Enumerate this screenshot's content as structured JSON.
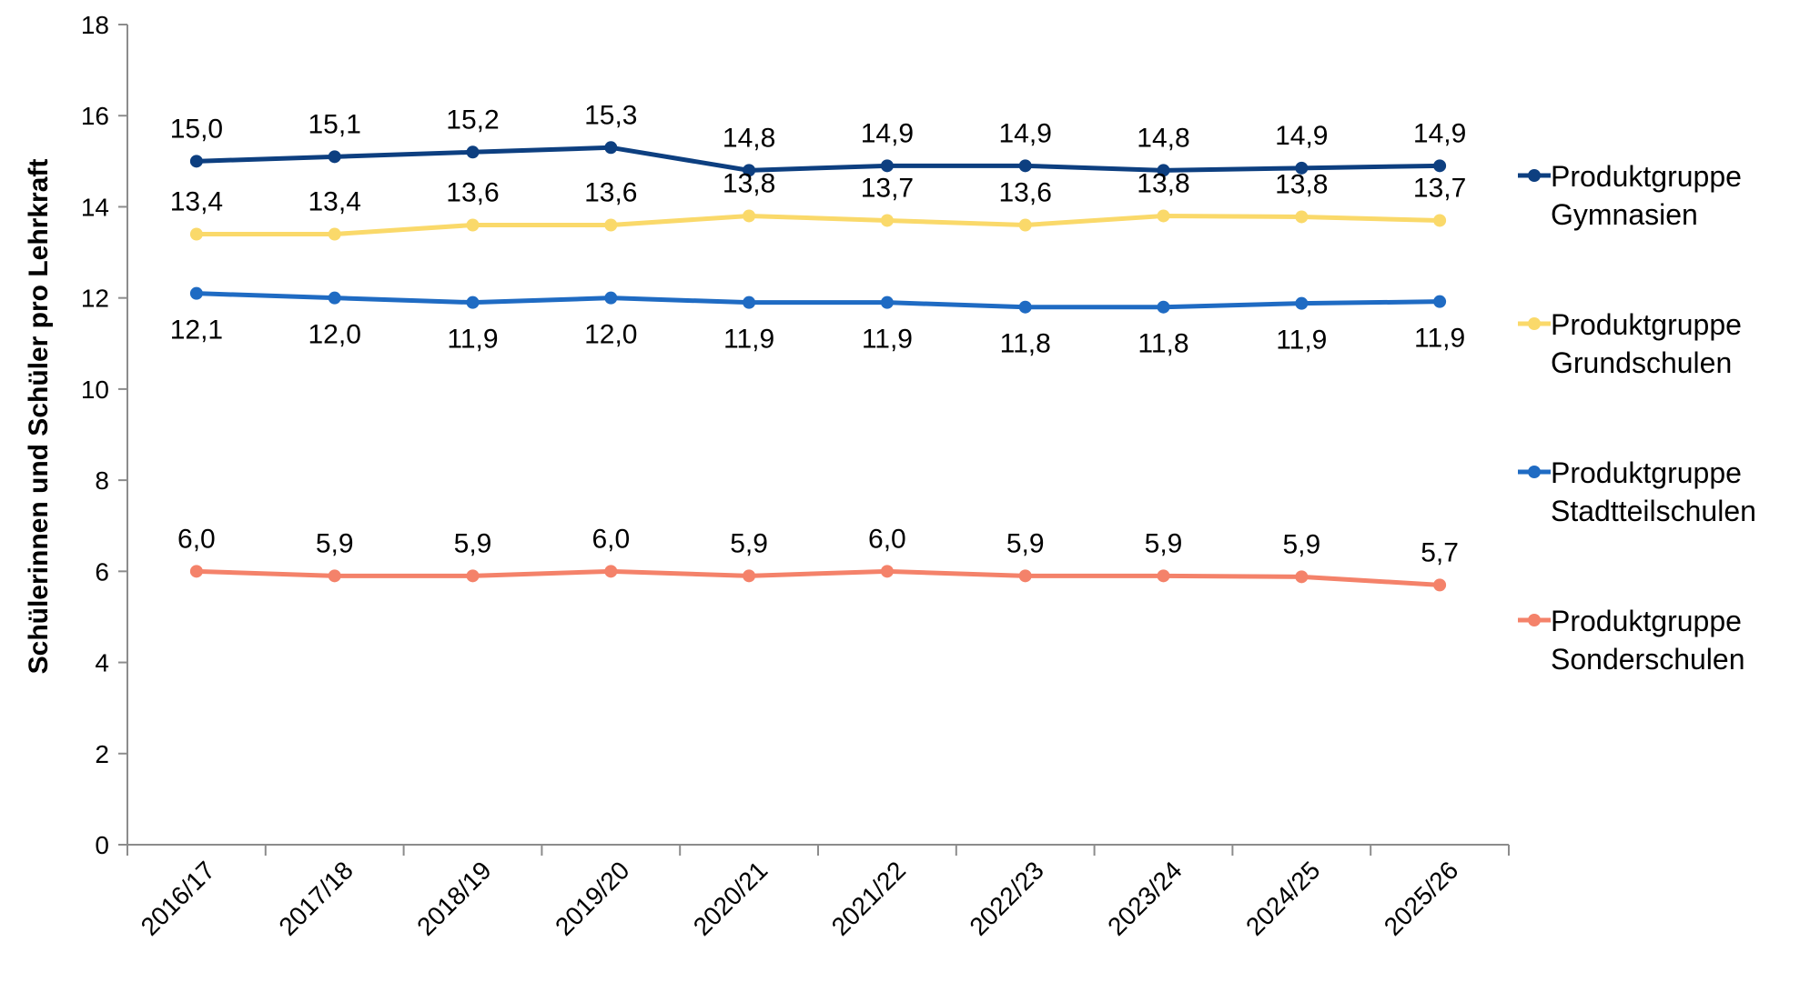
{
  "chart_data": {
    "type": "line",
    "title": "",
    "xlabel": "",
    "ylabel": "Schülerinnen und Schüler pro Lehrkraft",
    "categories": [
      "2016/17",
      "2017/18",
      "2018/19",
      "2019/20",
      "2020/21",
      "2021/22",
      "2022/23",
      "2023/24",
      "2024/25",
      "2025/26"
    ],
    "ylim": [
      0,
      18
    ],
    "yticks": [
      "0",
      "2",
      "4",
      "6",
      "8",
      "10",
      "12",
      "14",
      "16",
      "18"
    ],
    "grid": false,
    "legend_position": "right",
    "series": [
      {
        "name": "Produktgruppe Gymnasien",
        "legend_lines": [
          "Produktgruppe",
          "Gymnasien"
        ],
        "color": "#0d3f80",
        "values": [
          15.0,
          15.1,
          15.2,
          15.3,
          14.8,
          14.9,
          14.9,
          14.8,
          14.85,
          14.9
        ],
        "labels": [
          "15,0",
          "15,1",
          "15,2",
          "15,3",
          "14,8",
          "14,9",
          "14,9",
          "14,8",
          "14,9",
          "14,9"
        ],
        "label_pos": "above"
      },
      {
        "name": "Produktgruppe Grundschulen",
        "legend_lines": [
          "Produktgruppe",
          "Grundschulen"
        ],
        "color": "#fad96a",
        "values": [
          13.4,
          13.4,
          13.6,
          13.6,
          13.8,
          13.7,
          13.6,
          13.8,
          13.78,
          13.7
        ],
        "labels": [
          "13,4",
          "13,4",
          "13,6",
          "13,6",
          "13,8",
          "13,7",
          "13,6",
          "13,8",
          "13,8",
          "13,7"
        ],
        "label_pos": "above"
      },
      {
        "name": "Produktgruppe Stadtteilschulen",
        "legend_lines": [
          "Produktgruppe",
          "Stadtteilschulen"
        ],
        "color": "#1f6bc3",
        "values": [
          12.1,
          12.0,
          11.9,
          12.0,
          11.9,
          11.9,
          11.8,
          11.8,
          11.88,
          11.92
        ],
        "labels": [
          "12,1",
          "12,0",
          "11,9",
          "12,0",
          "11,9",
          "11,9",
          "11,8",
          "11,8",
          "11,9",
          "11,9"
        ],
        "label_pos": "below"
      },
      {
        "name": "Produktgruppe Sonderschulen",
        "legend_lines": [
          "Produktgruppe",
          "Sonderschulen"
        ],
        "color": "#f4826a",
        "values": [
          6.0,
          5.9,
          5.9,
          6.0,
          5.9,
          6.0,
          5.9,
          5.9,
          5.88,
          5.7
        ],
        "labels": [
          "6,0",
          "5,9",
          "5,9",
          "6,0",
          "5,9",
          "6,0",
          "5,9",
          "5,9",
          "5,9",
          "5,7"
        ],
        "label_pos": "above"
      }
    ]
  }
}
